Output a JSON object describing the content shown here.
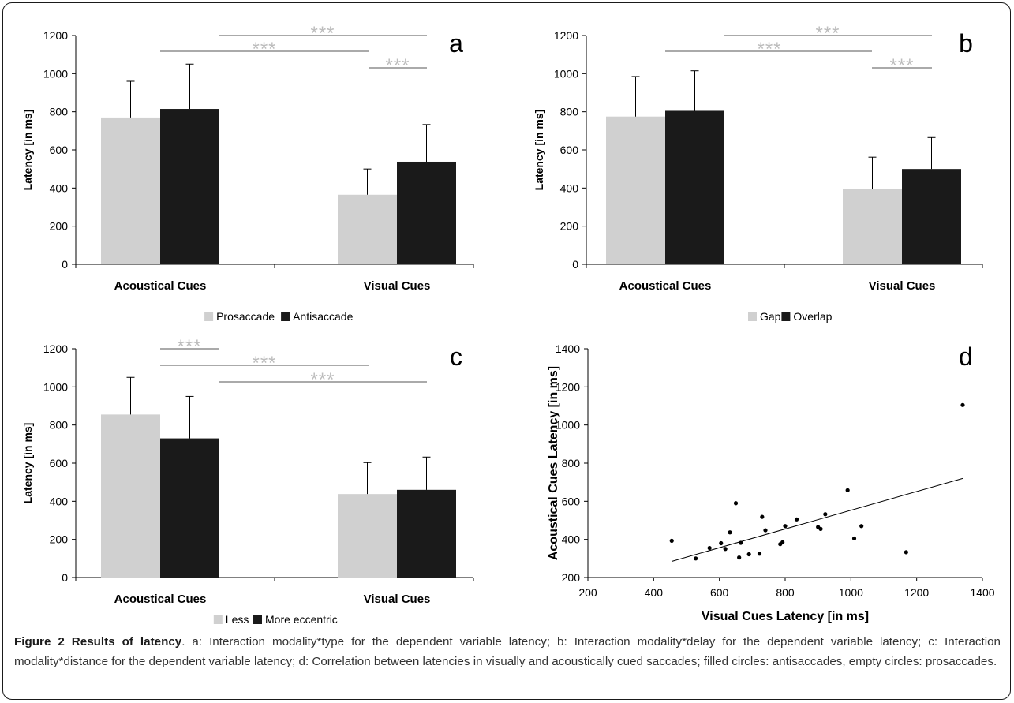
{
  "colors": {
    "light": "#d0d0d0",
    "dark": "#1a1a1a",
    "sig": "#bdbdbd"
  },
  "caption": {
    "title": "Figure 2 Results of latency",
    "text": ". a: Interaction modality*type for the dependent variable latency; b: Interaction modality*delay for the dependent variable latency; c: Interaction modality*distance for the dependent variable latency; d: Correlation between latencies in visually and acoustically cued saccades; filled circles: antisaccades, empty circles: prosaccades."
  },
  "chart_data": [
    {
      "panel": "a",
      "type": "bar",
      "categories": [
        "Acoustical Cues",
        "Visual Cues"
      ],
      "ylabel": "Latency [in ms]",
      "ylim": [
        0,
        1200
      ],
      "yticks": [
        0,
        200,
        400,
        600,
        800,
        1000,
        1200
      ],
      "series": [
        {
          "name": "Prosaccade",
          "values": [
            770,
            365
          ],
          "errors": [
            190,
            135
          ]
        },
        {
          "name": "Antisaccade",
          "values": [
            815,
            538
          ],
          "errors": [
            235,
            195
          ]
        }
      ],
      "annotations": [
        "***",
        "***",
        "***"
      ],
      "legend": "bottom"
    },
    {
      "panel": "b",
      "type": "bar",
      "categories": [
        "Acoustical Cues",
        "Visual Cues"
      ],
      "ylabel": "Latency [in ms]",
      "ylim": [
        0,
        1200
      ],
      "yticks": [
        0,
        200,
        400,
        600,
        800,
        1000,
        1200
      ],
      "series": [
        {
          "name": "Gap",
          "values": [
            775,
            397
          ],
          "errors": [
            210,
            165
          ]
        },
        {
          "name": "Overlap",
          "values": [
            805,
            500
          ],
          "errors": [
            210,
            165
          ]
        }
      ],
      "annotations": [
        "***",
        "***",
        "***"
      ],
      "legend": "bottom"
    },
    {
      "panel": "c",
      "type": "bar",
      "categories": [
        "Acoustical Cues",
        "Visual Cues"
      ],
      "ylabel": "Latency [in ms]",
      "ylim": [
        0,
        1200
      ],
      "yticks": [
        0,
        200,
        400,
        600,
        800,
        1000,
        1200
      ],
      "series": [
        {
          "name": "Less",
          "values": [
            855,
            438
          ],
          "errors": [
            195,
            165
          ]
        },
        {
          "name": "More eccentric",
          "values": [
            730,
            460
          ],
          "errors": [
            220,
            172
          ]
        }
      ],
      "annotations": [
        "***",
        "***",
        "***"
      ],
      "legend": "bottom"
    },
    {
      "panel": "d",
      "type": "scatter",
      "xlabel": "Visual Cues Latency [in ms]",
      "ylabel": "Acoustical Cues Latency [in ms]",
      "xlim": [
        200,
        1400
      ],
      "ylim": [
        200,
        1400
      ],
      "xticks": [
        200,
        400,
        600,
        800,
        1000,
        1200,
        1400
      ],
      "yticks": [
        200,
        400,
        600,
        800,
        1000,
        1200,
        1400
      ],
      "points": [
        [
          455,
          393
        ],
        [
          528,
          300
        ],
        [
          570,
          355
        ],
        [
          605,
          380
        ],
        [
          618,
          350
        ],
        [
          632,
          437
        ],
        [
          650,
          590
        ],
        [
          660,
          305
        ],
        [
          665,
          382
        ],
        [
          690,
          322
        ],
        [
          722,
          325
        ],
        [
          730,
          518
        ],
        [
          740,
          448
        ],
        [
          785,
          375
        ],
        [
          792,
          385
        ],
        [
          800,
          470
        ],
        [
          835,
          505
        ],
        [
          900,
          465
        ],
        [
          908,
          455
        ],
        [
          922,
          532
        ],
        [
          990,
          658
        ],
        [
          1010,
          405
        ],
        [
          1032,
          470
        ],
        [
          1168,
          333
        ],
        [
          1340,
          1105
        ]
      ],
      "trendline": [
        [
          455,
          285
        ],
        [
          1340,
          720
        ]
      ]
    }
  ]
}
